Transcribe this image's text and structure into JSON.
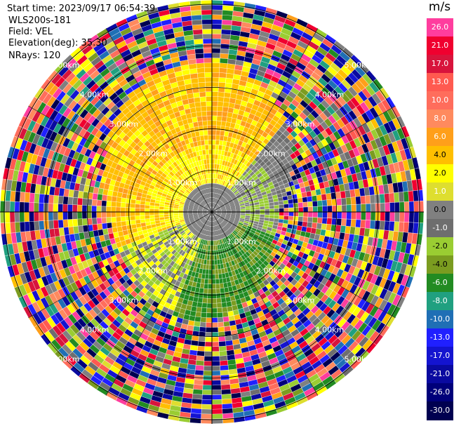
{
  "header": {
    "start_time": "Start time: 2023/09/17 06:54:39",
    "instrument": "WLS200s-181",
    "field": "Field: VEL",
    "elevation": "Elevation(deg): 35.30",
    "nrays": "NRays: 120"
  },
  "ppi": {
    "range_labels": [
      "1.00km",
      "2.00km",
      "3.00km",
      "4.00km",
      "5.00km"
    ],
    "ring_distances_km": [
      1,
      2,
      3,
      4,
      5
    ],
    "max_range_km": 5.1,
    "n_rays": 120
  },
  "colorbar": {
    "unit": "m/s",
    "segments": [
      {
        "label": "26.0",
        "color": "#ff3d9e",
        "text": "#ffffff"
      },
      {
        "label": "21.0",
        "color": "#f0002f",
        "text": "#ffffff"
      },
      {
        "label": "17.0",
        "color": "#d8143c",
        "text": "#ffffff"
      },
      {
        "label": "13.0",
        "color": "#ff5a50",
        "text": "#ffffff"
      },
      {
        "label": "10.0",
        "color": "#ff6d5c",
        "text": "#ffffff"
      },
      {
        "label": "8.0",
        "color": "#ff8a5e",
        "text": "#ffffff"
      },
      {
        "label": "6.0",
        "color": "#ff9f1a",
        "text": "#ffffff"
      },
      {
        "label": "4.0",
        "color": "#ffbf00",
        "text": "#000000"
      },
      {
        "label": "2.0",
        "color": "#ffff00",
        "text": "#000000"
      },
      {
        "label": "1.0",
        "color": "#dede2f",
        "text": "#ffffff"
      },
      {
        "label": "0.0",
        "color": "#808080",
        "text": "#000000"
      },
      {
        "label": "-1.0",
        "color": "#6e6e6e",
        "text": "#ffffff"
      },
      {
        "label": "-2.0",
        "color": "#9acd32",
        "text": "#000000"
      },
      {
        "label": "-4.0",
        "color": "#7b9c20",
        "text": "#000000"
      },
      {
        "label": "-6.0",
        "color": "#228b22",
        "text": "#ffffff"
      },
      {
        "label": "-8.0",
        "color": "#20a080",
        "text": "#ffffff"
      },
      {
        "label": "-10.0",
        "color": "#1f6fb5",
        "text": "#ffffff"
      },
      {
        "label": "-13.0",
        "color": "#2020ff",
        "text": "#ffffff"
      },
      {
        "label": "-17.0",
        "color": "#1414d0",
        "text": "#ffffff"
      },
      {
        "label": "-21.0",
        "color": "#0a0aa0",
        "text": "#ffffff"
      },
      {
        "label": "-26.0",
        "color": "#00007a",
        "text": "#ffffff"
      },
      {
        "label": "-30.0",
        "color": "#000050",
        "text": "#ffffff"
      }
    ]
  }
}
